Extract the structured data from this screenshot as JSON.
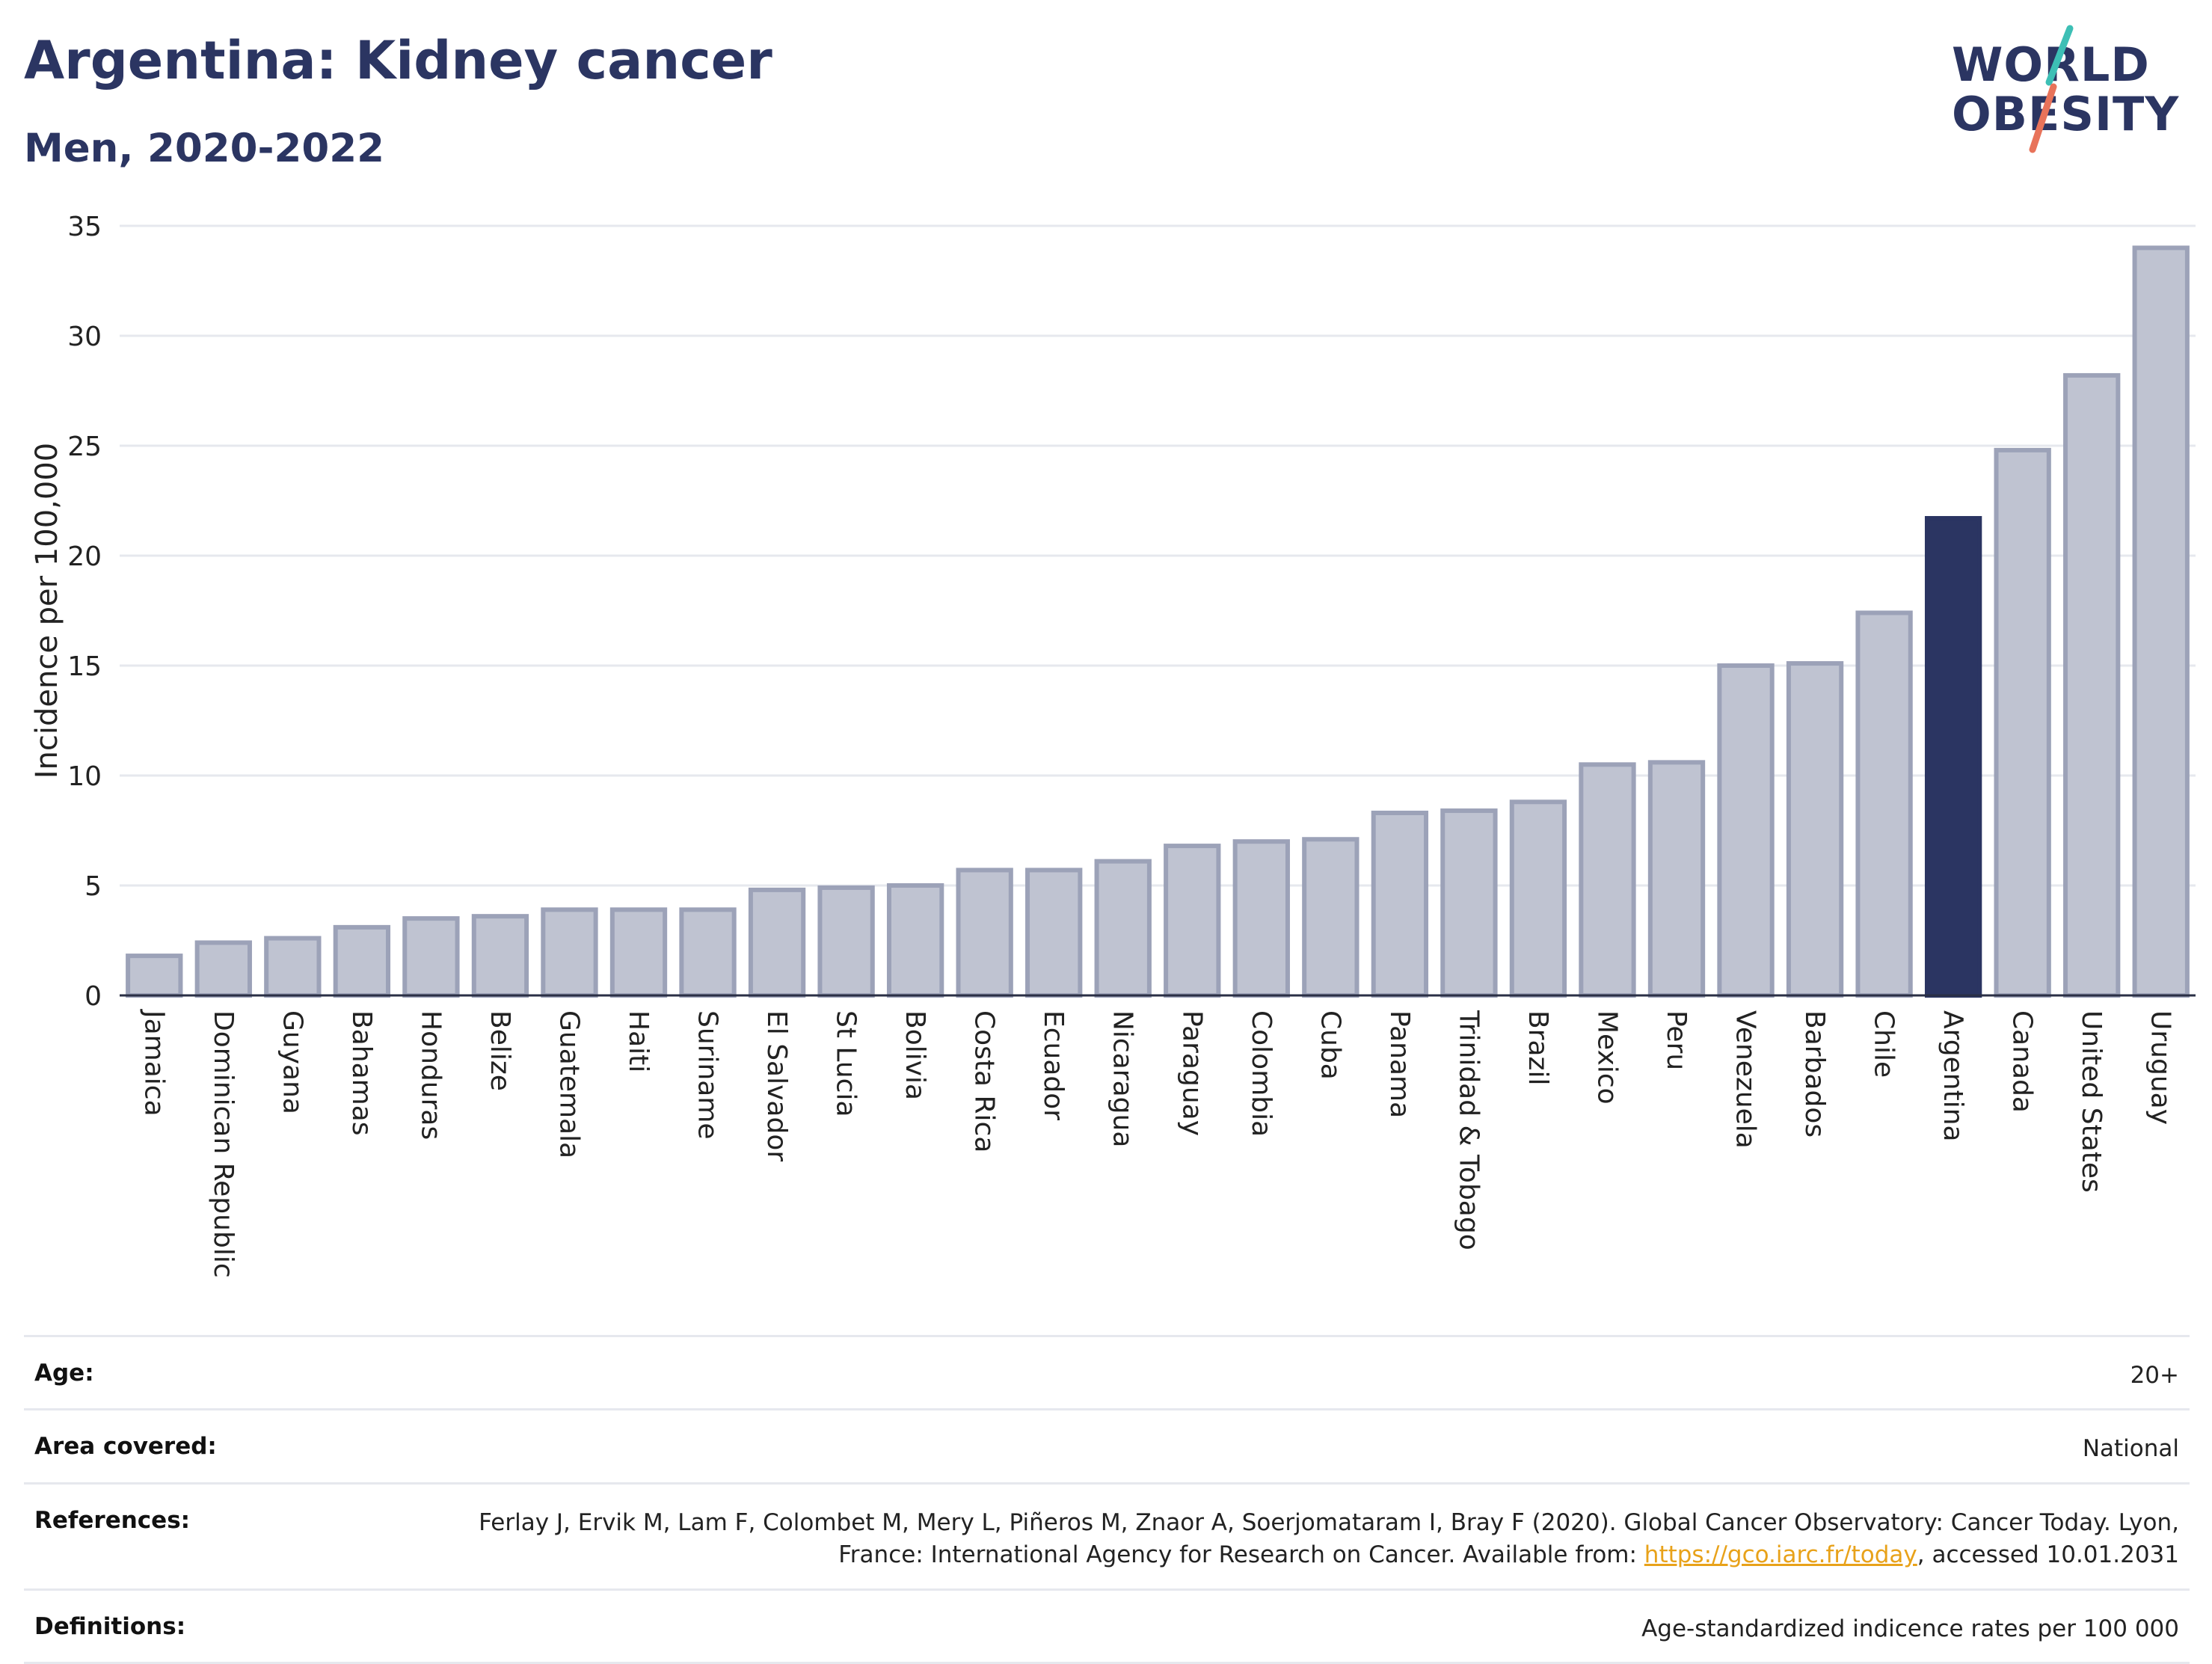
{
  "header": {
    "title": "Argentina: Kidney cancer",
    "subtitle": "Men, 2020-2022"
  },
  "logo": {
    "line1": "WORLD",
    "line2": "OBESITY",
    "accent_colors": [
      "#3dbfb5",
      "#e8735a"
    ]
  },
  "colors": {
    "highlight": "#2b3562",
    "bar": "#bfc3d1",
    "bar_border": "#9ca2b8",
    "grid": "#e6e8ee",
    "link": "#e8a21a"
  },
  "chart_data": {
    "type": "bar",
    "ylabel": "Incidence per 100,000",
    "xlabel": "",
    "ylim": [
      0,
      35
    ],
    "yticks": [
      0,
      5,
      10,
      15,
      20,
      25,
      30,
      35
    ],
    "grid": true,
    "highlight": "Argentina",
    "categories": [
      "Jamaica",
      "Dominican Republic",
      "Guyana",
      "Bahamas",
      "Honduras",
      "Belize",
      "Guatemala",
      "Haiti",
      "Suriname",
      "El Salvador",
      "St Lucia",
      "Bolivia",
      "Costa Rica",
      "Ecuador",
      "Nicaragua",
      "Paraguay",
      "Colombia",
      "Cuba",
      "Panama",
      "Trinidad & Tobago",
      "Brazil",
      "Mexico",
      "Peru",
      "Venezuela",
      "Barbados",
      "Chile",
      "Argentina",
      "Canada",
      "United States",
      "Uruguay"
    ],
    "values": [
      1.8,
      2.4,
      2.6,
      3.1,
      3.5,
      3.6,
      3.9,
      3.9,
      3.9,
      4.8,
      4.9,
      5.0,
      5.7,
      5.7,
      6.1,
      6.8,
      7.0,
      7.1,
      8.3,
      8.4,
      8.8,
      10.5,
      10.6,
      15.0,
      15.1,
      17.4,
      21.7,
      24.8,
      28.2,
      34.0
    ]
  },
  "meta": {
    "age_label": "Age:",
    "age_value": "20+",
    "area_label": "Area covered:",
    "area_value": "National",
    "references_label": "References:",
    "references_text_1": "Ferlay J, Ervik M, Lam F, Colombet M, Mery L, Piñeros M, Znaor A, Soerjomataram I, Bray F (2020). Global Cancer Observatory: Cancer Today. Lyon, France: International Agency for Research on Cancer. Available from: ",
    "references_link": "https://gco.iarc.fr/today",
    "references_text_2": ", accessed 10.01.2031",
    "definitions_label": "Definitions:",
    "definitions_value": "Age-standardized indicence rates per 100 000"
  }
}
